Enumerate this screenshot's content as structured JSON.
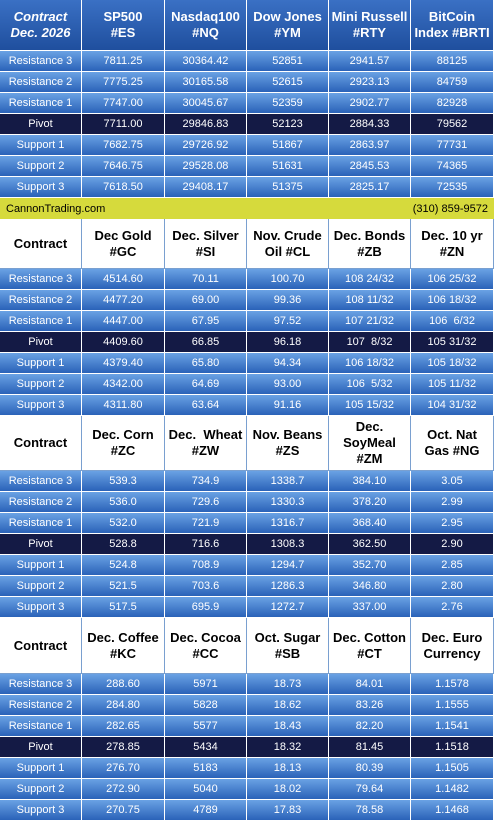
{
  "sections": [
    {
      "header": [
        [
          "Contract",
          "Dec. 2026"
        ],
        [
          "SP500",
          "#ES"
        ],
        [
          "Nasdaq100",
          "#NQ"
        ],
        [
          "Dow Jones",
          "#YM"
        ],
        [
          "Mini Russell",
          "#RTY"
        ],
        [
          "BitCoin",
          "Index #BRTI"
        ]
      ],
      "rows": [
        {
          "label": "Resistance 3",
          "values": [
            "7811.25",
            "30364.42",
            "52851",
            "2941.57",
            "88125"
          ]
        },
        {
          "label": "Resistance 2",
          "values": [
            "7775.25",
            "30165.58",
            "52615",
            "2923.13",
            "84759"
          ]
        },
        {
          "label": "Resistance 1",
          "values": [
            "7747.00",
            "30045.67",
            "52359",
            "2902.77",
            "82928"
          ]
        },
        {
          "label": "Pivot",
          "values": [
            "7711.00",
            "29846.83",
            "52123",
            "2884.33",
            "79562"
          ]
        },
        {
          "label": "Support 1",
          "values": [
            "7682.75",
            "29726.92",
            "51867",
            "2863.97",
            "77731"
          ]
        },
        {
          "label": "Support 2",
          "values": [
            "7646.75",
            "29528.08",
            "51631",
            "2845.53",
            "74365"
          ]
        },
        {
          "label": "Support 3",
          "values": [
            "7618.50",
            "29408.17",
            "51375",
            "2825.17",
            "72535"
          ]
        }
      ]
    },
    {
      "header": [
        [
          "Contract"
        ],
        [
          "Dec Gold",
          "#GC"
        ],
        [
          "Dec. Silver",
          "#SI"
        ],
        [
          "Nov. Crude",
          "Oil #CL"
        ],
        [
          "Dec. Bonds",
          "#ZB"
        ],
        [
          "Dec. 10 yr",
          "#ZN"
        ]
      ],
      "rows": [
        {
          "label": "Resistance 3",
          "values": [
            "4514.60",
            "70.11",
            "100.70",
            "108 24/32",
            "106 25/32"
          ]
        },
        {
          "label": "Resistance 2",
          "values": [
            "4477.20",
            "69.00",
            "99.36",
            "108 11/32",
            "106 18/32"
          ]
        },
        {
          "label": "Resistance 1",
          "values": [
            "4447.00",
            "67.95",
            "97.52",
            "107 21/32",
            "106  6/32"
          ]
        },
        {
          "label": "Pivot",
          "values": [
            "4409.60",
            "66.85",
            "96.18",
            "107  8/32",
            "105 31/32"
          ]
        },
        {
          "label": "Support 1",
          "values": [
            "4379.40",
            "65.80",
            "94.34",
            "106 18/32",
            "105 18/32"
          ]
        },
        {
          "label": "Support 2",
          "values": [
            "4342.00",
            "64.69",
            "93.00",
            "106  5/32",
            "105 11/32"
          ]
        },
        {
          "label": "Support 3",
          "values": [
            "4311.80",
            "63.64",
            "91.16",
            "105 15/32",
            "104 31/32"
          ]
        }
      ]
    },
    {
      "header": [
        [
          "Contract"
        ],
        [
          "Dec. Corn",
          "#ZC"
        ],
        [
          "Dec.  Wheat",
          "#ZW"
        ],
        [
          "Nov. Beans",
          "#ZS"
        ],
        [
          "Dec.",
          "SoyMeal",
          "#ZM"
        ],
        [
          "Oct. Nat",
          "Gas #NG"
        ]
      ],
      "rows": [
        {
          "label": "Resistance 3",
          "values": [
            "539.3",
            "734.9",
            "1338.7",
            "384.10",
            "3.05"
          ]
        },
        {
          "label": "Resistance 2",
          "values": [
            "536.0",
            "729.6",
            "1330.3",
            "378.20",
            "2.99"
          ]
        },
        {
          "label": "Resistance 1",
          "values": [
            "532.0",
            "721.9",
            "1316.7",
            "368.40",
            "2.95"
          ]
        },
        {
          "label": "Pivot",
          "values": [
            "528.8",
            "716.6",
            "1308.3",
            "362.50",
            "2.90"
          ]
        },
        {
          "label": "Support 1",
          "values": [
            "524.8",
            "708.9",
            "1294.7",
            "352.70",
            "2.85"
          ]
        },
        {
          "label": "Support 2",
          "values": [
            "521.5",
            "703.6",
            "1286.3",
            "346.80",
            "2.80"
          ]
        },
        {
          "label": "Support 3",
          "values": [
            "517.5",
            "695.9",
            "1272.7",
            "337.00",
            "2.76"
          ]
        }
      ]
    },
    {
      "header": [
        [
          "Contract"
        ],
        [
          "Dec. Coffee",
          "#KC"
        ],
        [
          "Dec. Cocoa",
          "#CC"
        ],
        [
          "Oct. Sugar",
          "#SB"
        ],
        [
          "Dec. Cotton",
          "#CT"
        ],
        [
          "Dec. Euro",
          "Currency"
        ]
      ],
      "rows": [
        {
          "label": "Resistance 3",
          "values": [
            "288.60",
            "5971",
            "18.73",
            "84.01",
            "1.1578"
          ]
        },
        {
          "label": "Resistance 2",
          "values": [
            "284.80",
            "5828",
            "18.62",
            "83.26",
            "1.1555"
          ]
        },
        {
          "label": "Resistance 1",
          "values": [
            "282.65",
            "5577",
            "18.43",
            "82.20",
            "1.1541"
          ]
        },
        {
          "label": "Pivot",
          "values": [
            "278.85",
            "5434",
            "18.32",
            "81.45",
            "1.1518"
          ]
        },
        {
          "label": "Support 1",
          "values": [
            "276.70",
            "5183",
            "18.13",
            "80.39",
            "1.1505"
          ]
        },
        {
          "label": "Support 2",
          "values": [
            "272.90",
            "5040",
            "18.02",
            "79.64",
            "1.1482"
          ]
        },
        {
          "label": "Support 3",
          "values": [
            "270.75",
            "4789",
            "17.83",
            "78.58",
            "1.1468"
          ]
        }
      ]
    }
  ],
  "banner": {
    "left": "CannonTrading.com",
    "right": "(310) 859-9572"
  }
}
